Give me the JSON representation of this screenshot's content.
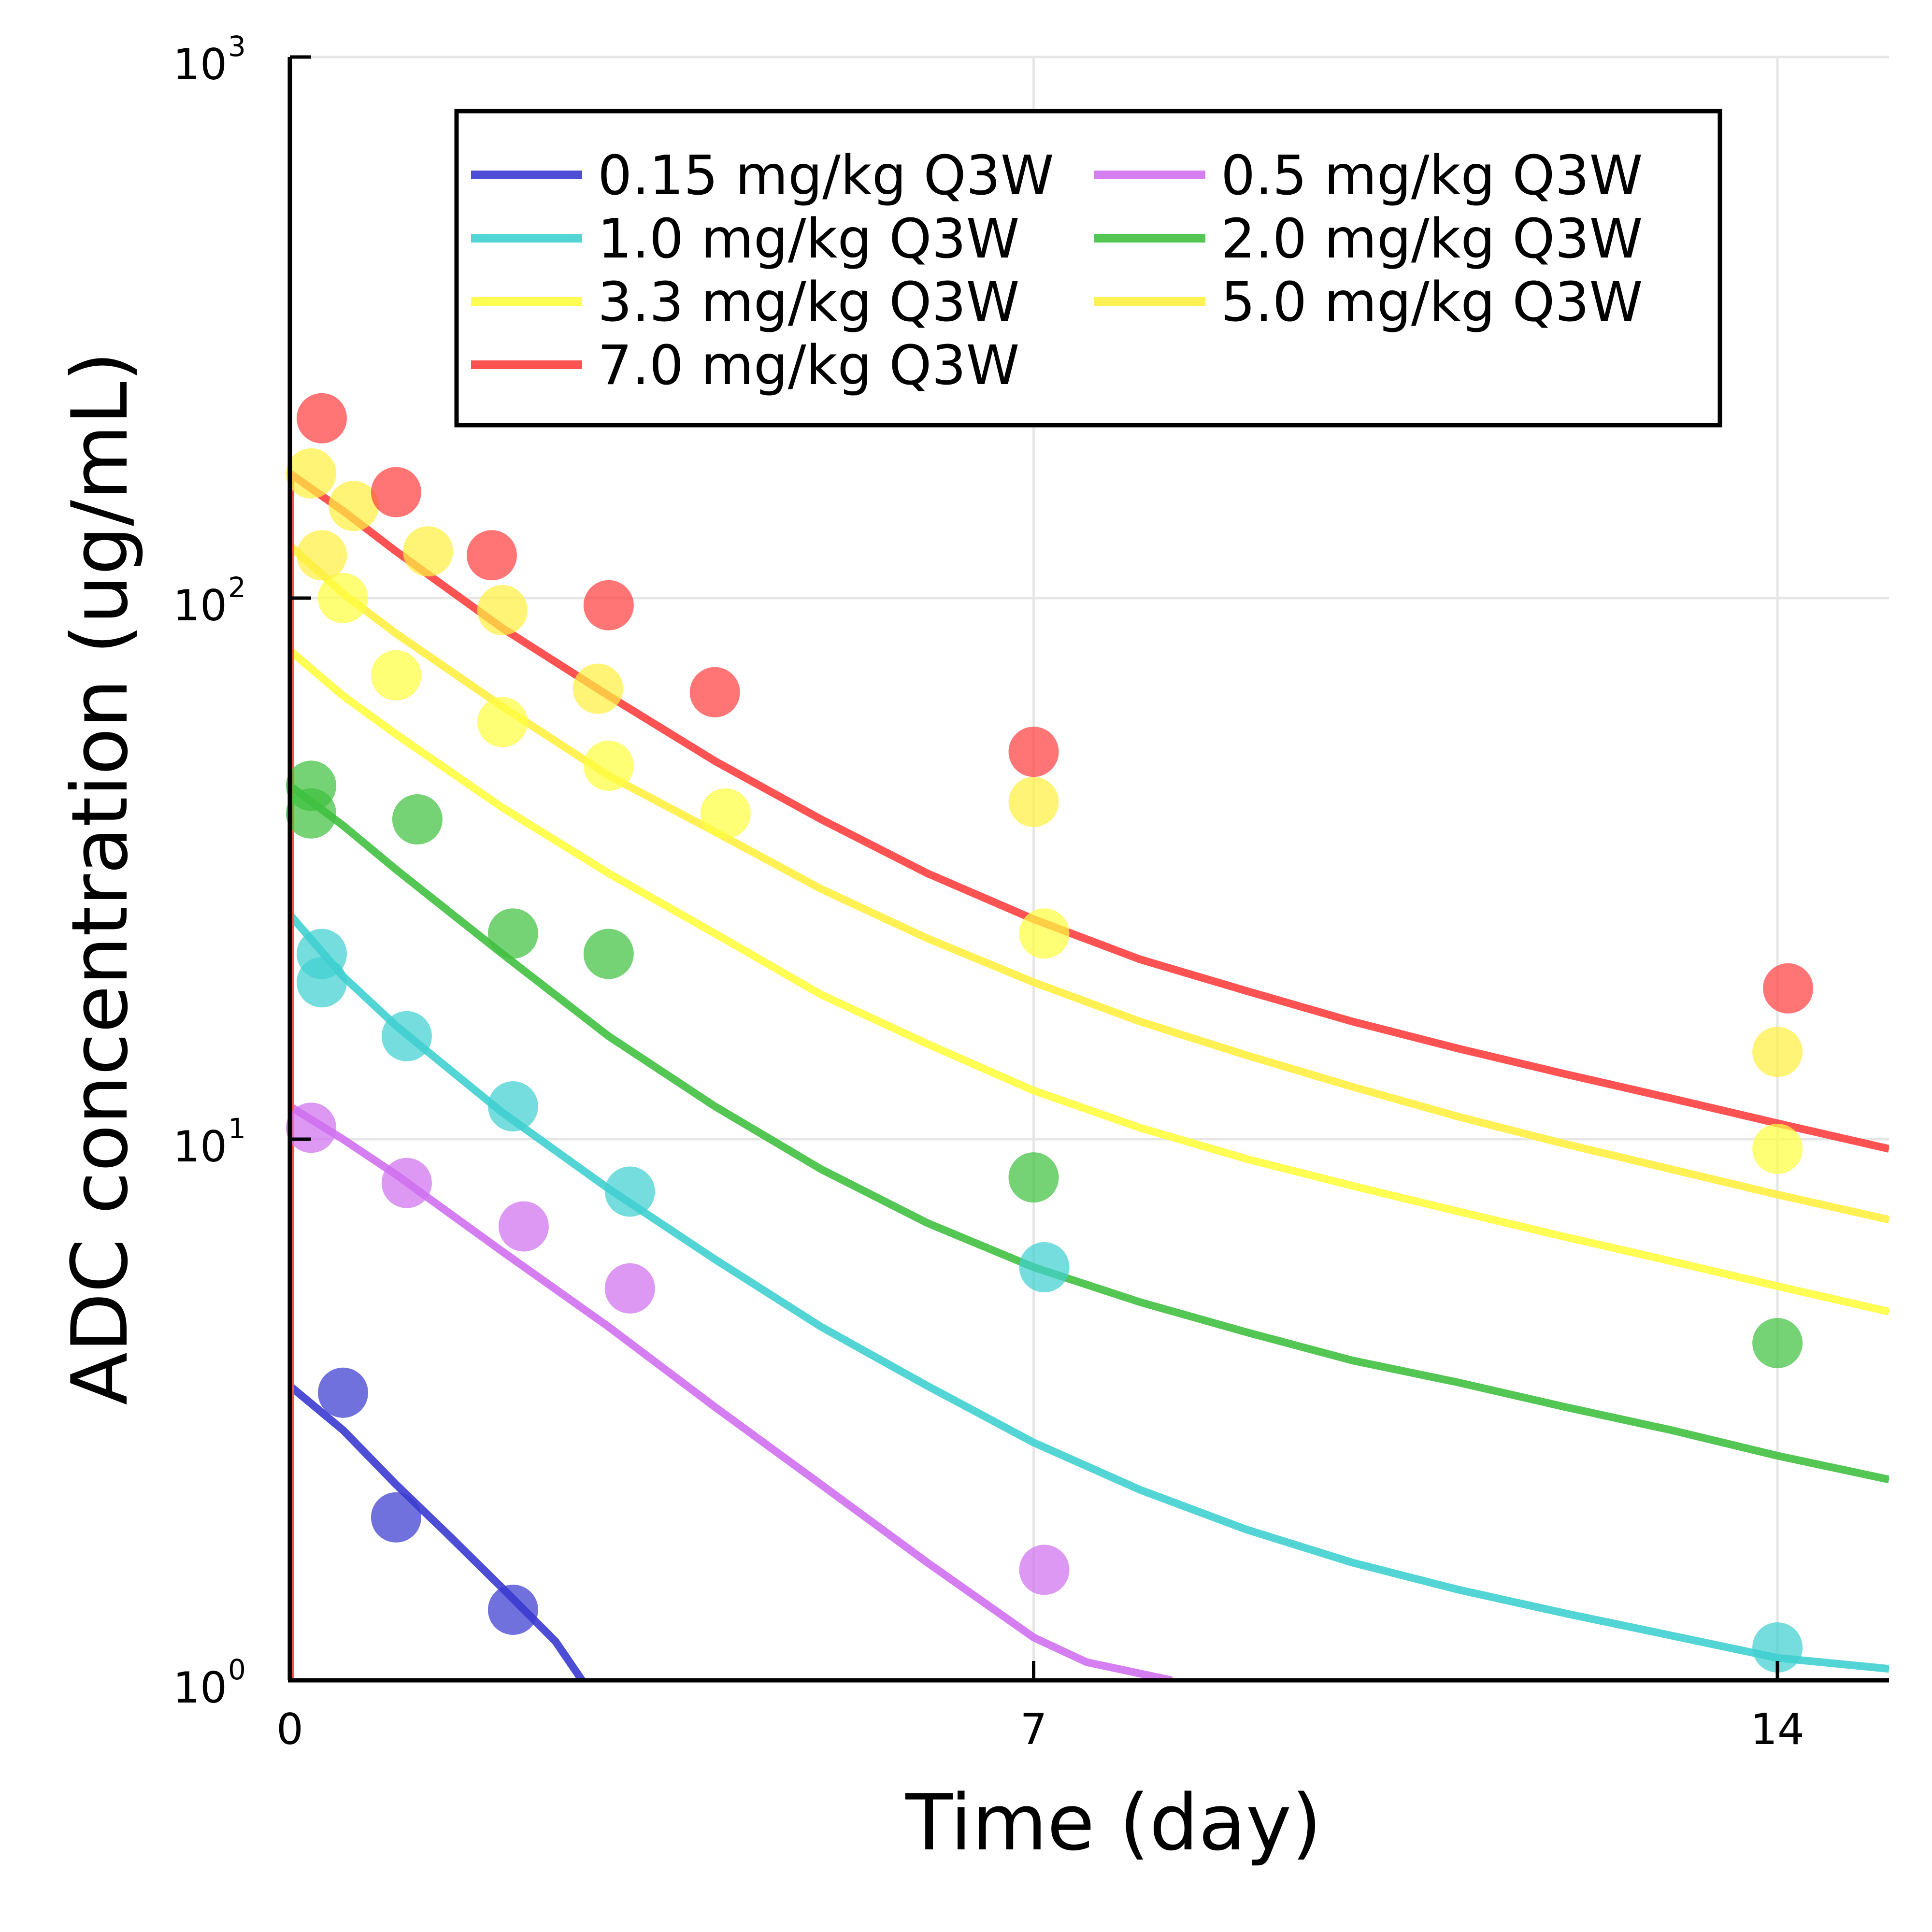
{
  "chart_data": {
    "type": "scatter",
    "xlabel": "Time (day)",
    "ylabel": "ADC concentration (ug/mL)",
    "yscale": "log",
    "xlim": [
      0,
      15.05
    ],
    "ylim": [
      1,
      1000
    ],
    "x_ticks": [
      {
        "value": 0,
        "label": "0"
      },
      {
        "value": 7,
        "label": "7"
      },
      {
        "value": 14,
        "label": "14"
      }
    ],
    "y_ticks": [
      {
        "value": 1,
        "base": "10",
        "exp": "0"
      },
      {
        "value": 10,
        "base": "10",
        "exp": "1"
      },
      {
        "value": 100,
        "base": "10",
        "exp": "2"
      },
      {
        "value": 1000,
        "base": "10",
        "exp": "3"
      }
    ],
    "grid": true,
    "legend": {
      "position": "top-right",
      "columns": 2
    },
    "series": [
      {
        "name": "0.15 mg/kg Q3W",
        "color": "#3a3ad0",
        "points": [
          [
            0.5,
            3.4
          ],
          [
            1.0,
            2.0
          ],
          [
            2.1,
            1.35
          ]
        ],
        "curve": [
          [
            0,
            3.5
          ],
          [
            0.5,
            2.9
          ],
          [
            1.0,
            2.3
          ],
          [
            1.5,
            1.85
          ],
          [
            2.0,
            1.48
          ],
          [
            2.5,
            1.18
          ],
          [
            2.75,
            1.0
          ]
        ]
      },
      {
        "name": "0.5 mg/kg Q3W",
        "color": "#d070f0",
        "points": [
          [
            0.2,
            10.5
          ],
          [
            1.1,
            8.3
          ],
          [
            2.2,
            6.9
          ],
          [
            3.2,
            5.3
          ],
          [
            7.1,
            1.6
          ]
        ],
        "curve": [
          [
            0,
            11.5
          ],
          [
            0.5,
            10.0
          ],
          [
            1,
            8.6
          ],
          [
            2,
            6.2
          ],
          [
            3,
            4.5
          ],
          [
            4,
            3.2
          ],
          [
            5,
            2.3
          ],
          [
            6,
            1.65
          ],
          [
            7,
            1.2
          ],
          [
            7.5,
            1.08
          ],
          [
            8.3,
            1.0
          ]
        ]
      },
      {
        "name": "1.0 mg/kg Q3W",
        "color": "#40d0d0",
        "points": [
          [
            0.3,
            22
          ],
          [
            0.3,
            19.5
          ],
          [
            1.1,
            15.5
          ],
          [
            2.1,
            11.5
          ],
          [
            3.2,
            8.0
          ],
          [
            7.1,
            5.8
          ],
          [
            14.0,
            1.15
          ]
        ],
        "curve": [
          [
            0,
            26
          ],
          [
            0.5,
            20
          ],
          [
            1,
            16.2
          ],
          [
            2,
            11.2
          ],
          [
            3,
            8.1
          ],
          [
            4,
            6.0
          ],
          [
            5,
            4.5
          ],
          [
            6,
            3.5
          ],
          [
            7,
            2.75
          ],
          [
            8,
            2.25
          ],
          [
            9,
            1.9
          ],
          [
            10,
            1.65
          ],
          [
            11,
            1.47
          ],
          [
            12,
            1.33
          ],
          [
            13,
            1.21
          ],
          [
            14,
            1.1
          ],
          [
            15.05,
            1.05
          ]
        ]
      },
      {
        "name": "2.0 mg/kg Q3W",
        "color": "#40c040",
        "points": [
          [
            0.2,
            45
          ],
          [
            0.2,
            40
          ],
          [
            1.2,
            39
          ],
          [
            2.1,
            24
          ],
          [
            3.0,
            22
          ],
          [
            7.0,
            8.5
          ],
          [
            14.0,
            4.2
          ]
        ],
        "curve": [
          [
            0,
            45
          ],
          [
            0.5,
            38
          ],
          [
            1,
            31.5
          ],
          [
            2,
            22
          ],
          [
            3,
            15.5
          ],
          [
            4,
            11.5
          ],
          [
            5,
            8.8
          ],
          [
            6,
            7.0
          ],
          [
            7,
            5.8
          ],
          [
            8,
            5.0
          ],
          [
            9,
            4.4
          ],
          [
            10,
            3.9
          ],
          [
            11,
            3.55
          ],
          [
            12,
            3.2
          ],
          [
            13,
            2.9
          ],
          [
            14,
            2.6
          ],
          [
            15.05,
            2.35
          ]
        ]
      },
      {
        "name": "3.3 mg/kg Q3W",
        "color": "#ffff40",
        "points": [
          [
            0.5,
            100
          ],
          [
            1.0,
            72
          ],
          [
            2.0,
            59
          ],
          [
            3.0,
            49
          ],
          [
            4.1,
            40
          ],
          [
            7.1,
            24
          ],
          [
            14.0,
            9.6
          ]
        ],
        "curve": [
          [
            0,
            80
          ],
          [
            0.5,
            66
          ],
          [
            1,
            56
          ],
          [
            2,
            41
          ],
          [
            3,
            31
          ],
          [
            4,
            24
          ],
          [
            5,
            18.5
          ],
          [
            6,
            15
          ],
          [
            7,
            12.3
          ],
          [
            8,
            10.5
          ],
          [
            9,
            9.2
          ],
          [
            10,
            8.2
          ],
          [
            11,
            7.35
          ],
          [
            12,
            6.6
          ],
          [
            13,
            5.95
          ],
          [
            14,
            5.35
          ],
          [
            15.05,
            4.8
          ]
        ]
      },
      {
        "name": "5.0 mg/kg Q3W",
        "color": "#fff040",
        "points": [
          [
            0.2,
            170
          ],
          [
            0.6,
            148
          ],
          [
            0.3,
            120
          ],
          [
            1.3,
            122
          ],
          [
            2.0,
            95
          ],
          [
            2.9,
            68
          ],
          [
            7.0,
            42
          ],
          [
            14.0,
            14.5
          ]
        ],
        "curve": [
          [
            0,
            125
          ],
          [
            0.5,
            102
          ],
          [
            1,
            86
          ],
          [
            2,
            63
          ],
          [
            3,
            47
          ],
          [
            4,
            37
          ],
          [
            5,
            29
          ],
          [
            6,
            23.5
          ],
          [
            7,
            19.5
          ],
          [
            8,
            16.5
          ],
          [
            9,
            14.3
          ],
          [
            10,
            12.5
          ],
          [
            11,
            11.0
          ],
          [
            12,
            9.8
          ],
          [
            13,
            8.8
          ],
          [
            14,
            7.9
          ],
          [
            15.05,
            7.1
          ]
        ]
      },
      {
        "name": "7.0 mg/kg Q3W",
        "color": "#ff4040",
        "points": [
          [
            0.3,
            215
          ],
          [
            1.0,
            157
          ],
          [
            1.9,
            120
          ],
          [
            3.0,
            97
          ],
          [
            4.0,
            67
          ],
          [
            7.0,
            52
          ],
          [
            14.1,
            19
          ]
        ],
        "curve": [
          [
            0,
            170
          ],
          [
            0.5,
            145
          ],
          [
            1,
            122
          ],
          [
            2,
            88
          ],
          [
            3,
            66
          ],
          [
            4,
            50
          ],
          [
            5,
            39
          ],
          [
            6,
            31
          ],
          [
            7,
            25.5
          ],
          [
            8,
            21.5
          ],
          [
            9,
            18.8
          ],
          [
            10,
            16.5
          ],
          [
            11,
            14.7
          ],
          [
            12,
            13.2
          ],
          [
            13,
            11.9
          ],
          [
            14,
            10.7
          ],
          [
            15.05,
            9.6
          ]
        ]
      }
    ]
  }
}
